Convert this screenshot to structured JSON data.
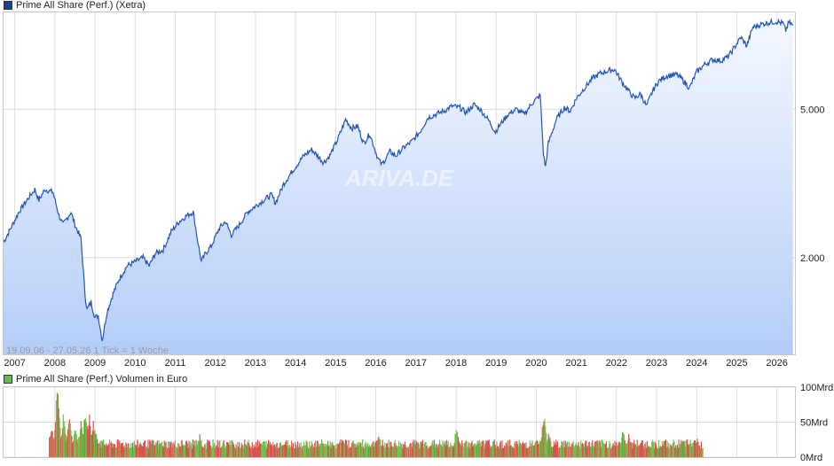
{
  "price_chart": {
    "legend": "Prime All Share (Perf.) (Xetra)",
    "legend_color": "#1f3f8f",
    "watermark": "ARIVA.DE",
    "info": "19.09.06 - 27.05.26    1 Tick = 1 Woche",
    "line_color": "#2356b3",
    "fill_top": "#f4f8ff",
    "fill_bottom": "#b4cdf7"
  },
  "volume_chart": {
    "legend": "Prime All Share (Perf.) Volumen in Euro",
    "legend_color": "#66bb55",
    "up_color": "#6cc24a",
    "down_color": "#d9534f"
  },
  "chart_data": [
    {
      "type": "line",
      "title": "Prime All Share (Perf.) (Xetra)",
      "scale": "log",
      "x_range": [
        "19.09.06",
        "27.05.26"
      ],
      "x_ticks": [
        "2007",
        "2008",
        "2009",
        "2010",
        "2011",
        "2012",
        "2013",
        "2014",
        "2015",
        "2016",
        "2017",
        "2018",
        "2019",
        "2020",
        "2021",
        "2022",
        "2023",
        "2024",
        "2025",
        "2026"
      ],
      "y_ticks": [
        {
          "value": 2000,
          "label": "2.000"
        },
        {
          "value": 5000,
          "label": "5.000"
        }
      ],
      "ylim": [
        1100,
        9100
      ],
      "series": [
        {
          "name": "Prime All Share (Perf.)",
          "points": [
            [
              2006.72,
              2200
            ],
            [
              2006.9,
              2400
            ],
            [
              2007.1,
              2650
            ],
            [
              2007.3,
              2850
            ],
            [
              2007.5,
              3050
            ],
            [
              2007.6,
              2850
            ],
            [
              2007.75,
              3050
            ],
            [
              2007.95,
              3000
            ],
            [
              2008.1,
              2600
            ],
            [
              2008.2,
              2450
            ],
            [
              2008.3,
              2550
            ],
            [
              2008.4,
              2650
            ],
            [
              2008.5,
              2450
            ],
            [
              2008.65,
              2250
            ],
            [
              2008.75,
              1600
            ],
            [
              2008.8,
              1450
            ],
            [
              2008.9,
              1520
            ],
            [
              2009.0,
              1380
            ],
            [
              2009.08,
              1400
            ],
            [
              2009.18,
              1200
            ],
            [
              2009.3,
              1430
            ],
            [
              2009.45,
              1600
            ],
            [
              2009.6,
              1750
            ],
            [
              2009.8,
              1900
            ],
            [
              2010.0,
              1950
            ],
            [
              2010.2,
              2000
            ],
            [
              2010.35,
              1900
            ],
            [
              2010.5,
              2050
            ],
            [
              2010.7,
              2100
            ],
            [
              2010.9,
              2350
            ],
            [
              2011.1,
              2500
            ],
            [
              2011.3,
              2600
            ],
            [
              2011.45,
              2650
            ],
            [
              2011.55,
              2250
            ],
            [
              2011.65,
              1950
            ],
            [
              2011.75,
              2050
            ],
            [
              2011.9,
              2150
            ],
            [
              2012.1,
              2400
            ],
            [
              2012.25,
              2500
            ],
            [
              2012.4,
              2300
            ],
            [
              2012.6,
              2450
            ],
            [
              2012.8,
              2650
            ],
            [
              2013.0,
              2750
            ],
            [
              2013.2,
              2850
            ],
            [
              2013.4,
              2950
            ],
            [
              2013.5,
              2800
            ],
            [
              2013.7,
              3150
            ],
            [
              2013.95,
              3450
            ],
            [
              2014.2,
              3750
            ],
            [
              2014.4,
              3900
            ],
            [
              2014.55,
              3750
            ],
            [
              2014.7,
              3600
            ],
            [
              2014.85,
              3750
            ],
            [
              2015.05,
              4150
            ],
            [
              2015.25,
              4700
            ],
            [
              2015.4,
              4450
            ],
            [
              2015.55,
              4500
            ],
            [
              2015.7,
              4050
            ],
            [
              2015.85,
              4300
            ],
            [
              2016.05,
              3700
            ],
            [
              2016.15,
              3550
            ],
            [
              2016.35,
              3850
            ],
            [
              2016.5,
              3750
            ],
            [
              2016.7,
              3950
            ],
            [
              2016.9,
              4100
            ],
            [
              2017.1,
              4350
            ],
            [
              2017.3,
              4750
            ],
            [
              2017.5,
              4850
            ],
            [
              2017.7,
              4950
            ],
            [
              2017.9,
              5100
            ],
            [
              2018.1,
              5050
            ],
            [
              2018.25,
              4900
            ],
            [
              2018.45,
              5150
            ],
            [
              2018.6,
              5000
            ],
            [
              2018.8,
              4700
            ],
            [
              2018.98,
              4350
            ],
            [
              2019.1,
              4550
            ],
            [
              2019.3,
              4850
            ],
            [
              2019.5,
              5000
            ],
            [
              2019.7,
              4850
            ],
            [
              2019.9,
              5200
            ],
            [
              2020.1,
              5450
            ],
            [
              2020.18,
              3800
            ],
            [
              2020.23,
              3500
            ],
            [
              2020.3,
              4050
            ],
            [
              2020.5,
              4700
            ],
            [
              2020.7,
              5050
            ],
            [
              2020.85,
              4950
            ],
            [
              2021.0,
              5350
            ],
            [
              2021.2,
              5700
            ],
            [
              2021.4,
              6050
            ],
            [
              2021.6,
              6250
            ],
            [
              2021.8,
              6350
            ],
            [
              2021.95,
              6400
            ],
            [
              2022.15,
              5900
            ],
            [
              2022.25,
              5700
            ],
            [
              2022.45,
              5350
            ],
            [
              2022.6,
              5500
            ],
            [
              2022.75,
              5100
            ],
            [
              2022.9,
              5600
            ],
            [
              2023.05,
              5950
            ],
            [
              2023.25,
              6150
            ],
            [
              2023.5,
              6200
            ],
            [
              2023.65,
              6000
            ],
            [
              2023.82,
              5700
            ],
            [
              2024.0,
              6300
            ],
            [
              2024.2,
              6600
            ],
            [
              2024.4,
              6800
            ],
            [
              2024.6,
              6750
            ],
            [
              2024.8,
              6950
            ],
            [
              2025.0,
              7500
            ],
            [
              2025.1,
              7800
            ],
            [
              2025.25,
              7400
            ],
            [
              2025.4,
              8300
            ],
            [
              2025.6,
              8450
            ],
            [
              2025.8,
              8550
            ],
            [
              2026.0,
              8600
            ],
            [
              2026.15,
              8500
            ],
            [
              2026.22,
              8150
            ],
            [
              2026.3,
              8550
            ],
            [
              2026.4,
              8400
            ]
          ]
        }
      ]
    },
    {
      "type": "bar",
      "title": "Prime All Share (Perf.) Volumen in Euro",
      "y_ticks": [
        {
          "value": 0,
          "label": "0Mrd"
        },
        {
          "value": 50,
          "label": "50Mrd"
        },
        {
          "value": 100,
          "label": "100Mrd"
        }
      ],
      "ylim": [
        0,
        100
      ],
      "x_range": [
        2007.85,
        2024.15
      ],
      "unit": "Mrd Euro",
      "events": [
        [
          2007.9,
          45
        ],
        [
          2008.05,
          92
        ],
        [
          2008.2,
          55
        ],
        [
          2008.35,
          60
        ],
        [
          2008.5,
          45
        ],
        [
          2008.65,
          50
        ],
        [
          2008.75,
          65
        ],
        [
          2008.85,
          55
        ],
        [
          2008.95,
          50
        ],
        [
          2009.0,
          35
        ],
        [
          2011.6,
          35
        ],
        [
          2015.1,
          32
        ],
        [
          2016.05,
          35
        ],
        [
          2018.0,
          48
        ],
        [
          2020.18,
          68
        ],
        [
          2020.3,
          42
        ],
        [
          2022.15,
          42
        ],
        [
          2022.3,
          38
        ],
        [
          2023.4,
          28
        ],
        [
          2024.0,
          30
        ]
      ],
      "baseline": 22
    }
  ]
}
